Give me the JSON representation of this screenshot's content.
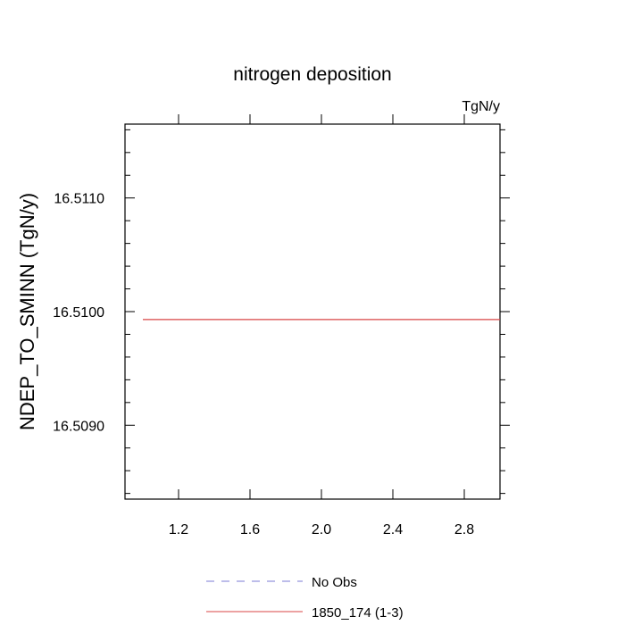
{
  "chart_data": {
    "type": "line",
    "title": "nitrogen deposition",
    "units_label": "TgN/y",
    "xlabel": "",
    "ylabel": "NDEP_TO_SMINN  (TgN/y)",
    "xlim": [
      0.9,
      3.0
    ],
    "ylim": [
      16.50835,
      16.51165
    ],
    "x_ticks": [
      1.2,
      1.6,
      2.0,
      2.4,
      2.8
    ],
    "x_tick_labels": [
      "1.2",
      "1.6",
      "2.0",
      "2.4",
      "2.8"
    ],
    "x_minor_step": 0.4,
    "y_ticks": [
      16.509,
      16.51,
      16.511
    ],
    "y_tick_labels": [
      "16.5090",
      "16.5100",
      "16.5110"
    ],
    "y_minor_step": 0.0002,
    "grid": false,
    "legend_position": "bottom",
    "series": [
      {
        "name": "No Obs",
        "color": "#7b7bd6",
        "dash": "dashed",
        "x": [],
        "y": []
      },
      {
        "name": "1850_174 (1-3)",
        "color": "#d94545",
        "dash": "solid",
        "x": [
          1.0,
          3.0
        ],
        "y": [
          16.50993,
          16.50993
        ]
      }
    ]
  }
}
